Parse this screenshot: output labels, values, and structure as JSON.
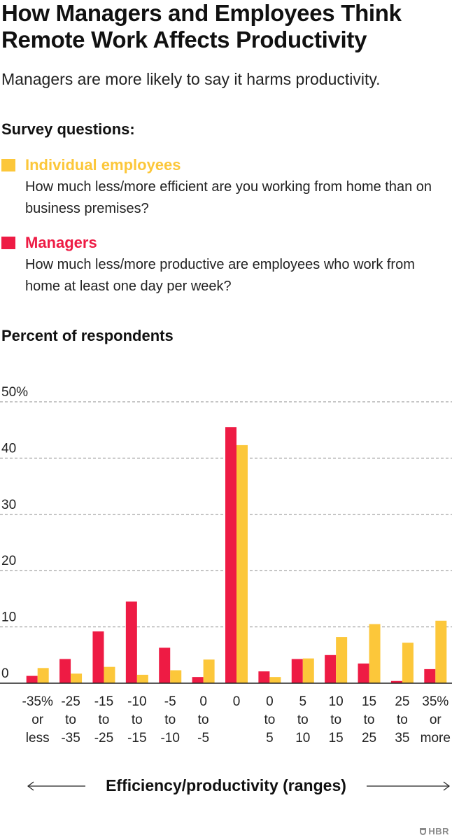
{
  "title": "How Managers and Employees Think Remote Work Affects Productivity",
  "subtitle": "Managers are more likely to say it harms productivity.",
  "survey_heading": "Survey questions:",
  "legend": [
    {
      "name": "Individual employees",
      "question": "How much less/more efficient are you working from home than on business premises?",
      "color": "#fcc73a"
    },
    {
      "name": "Managers",
      "question": "How much less/more productive are employees who work from home at least one day per week?",
      "color": "#ee1b44"
    }
  ],
  "percent_heading": "Percent of respondents",
  "footer": {
    "brand": "HBR"
  },
  "chart_data": {
    "type": "bar",
    "ylabel": "Percent of respondents",
    "xlabel": "Efficiency/productivity (ranges)",
    "ylim": [
      0,
      50
    ],
    "yticks": [
      {
        "value": 0,
        "label": "0"
      },
      {
        "value": 10,
        "label": "10"
      },
      {
        "value": 20,
        "label": "20"
      },
      {
        "value": 30,
        "label": "30"
      },
      {
        "value": 40,
        "label": "40"
      },
      {
        "value": 50,
        "label": "50%"
      }
    ],
    "grid": true,
    "categories": [
      [
        "-35%",
        "or",
        "less"
      ],
      [
        "-25",
        "to",
        "-35"
      ],
      [
        "-15",
        "to",
        "-25"
      ],
      [
        "-10",
        "to",
        "-15"
      ],
      [
        "-5",
        "to",
        "-10"
      ],
      [
        "0",
        "to",
        "-5"
      ],
      [
        "0"
      ],
      [
        "0",
        "to",
        "5"
      ],
      [
        "5",
        "to",
        "10"
      ],
      [
        "10",
        "to",
        "15"
      ],
      [
        "15",
        "to",
        "25"
      ],
      [
        "25",
        "to",
        "35"
      ],
      [
        "35%",
        "or",
        "more"
      ]
    ],
    "series": [
      {
        "name": "Managers",
        "color": "#ee1b44",
        "values": [
          1.3,
          4.3,
          9.2,
          14.5,
          6.3,
          1.1,
          45.5,
          2.1,
          4.3,
          5.0,
          3.5,
          0.4,
          2.5
        ]
      },
      {
        "name": "Individual employees",
        "color": "#fcc73a",
        "values": [
          2.7,
          1.7,
          2.9,
          1.5,
          2.3,
          4.2,
          42.3,
          1.1,
          4.4,
          8.2,
          10.5,
          7.2,
          11.1
        ]
      }
    ]
  }
}
